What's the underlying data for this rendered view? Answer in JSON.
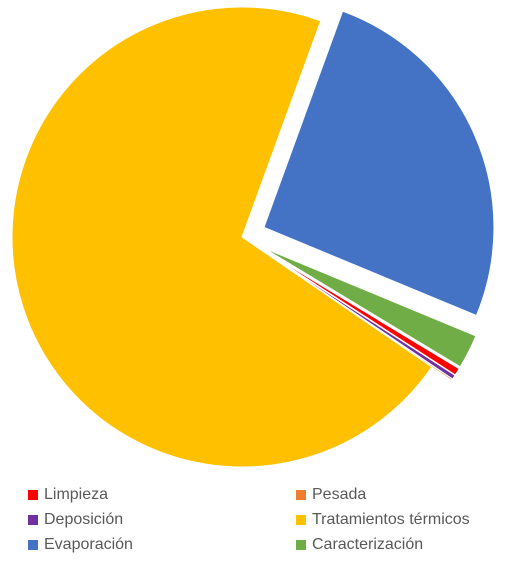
{
  "chart_data": {
    "type": "pie",
    "title": "",
    "legend_position": "bottom",
    "slices": [
      {
        "name": "Evaporación",
        "value": 25.7,
        "color": "#4472C4",
        "exploded": true
      },
      {
        "name": "Caracterización",
        "value": 2.4,
        "color": "#70AD47",
        "exploded": true
      },
      {
        "name": "Limpieza",
        "value": 0.5,
        "color": "#FF0000",
        "exploded": true
      },
      {
        "name": "Deposición",
        "value": 0.3,
        "color": "#7030A0",
        "exploded": true
      },
      {
        "name": "Pesada",
        "value": 0.1,
        "color": "#ED7D31",
        "exploded": true
      },
      {
        "name": "Tratamientos térmicos",
        "value": 71.0,
        "color": "#FFC000",
        "exploded": false
      }
    ]
  },
  "legend": {
    "items": [
      {
        "label": "Limpieza",
        "color": "#FF0000"
      },
      {
        "label": "Pesada",
        "color": "#ED7D31"
      },
      {
        "label": "Deposición",
        "color": "#7030A0"
      },
      {
        "label": "Tratamientos térmicos",
        "color": "#FFC000"
      },
      {
        "label": "Evaporación",
        "color": "#4472C4"
      },
      {
        "label": "Caracterización",
        "color": "#70AD47"
      }
    ]
  }
}
